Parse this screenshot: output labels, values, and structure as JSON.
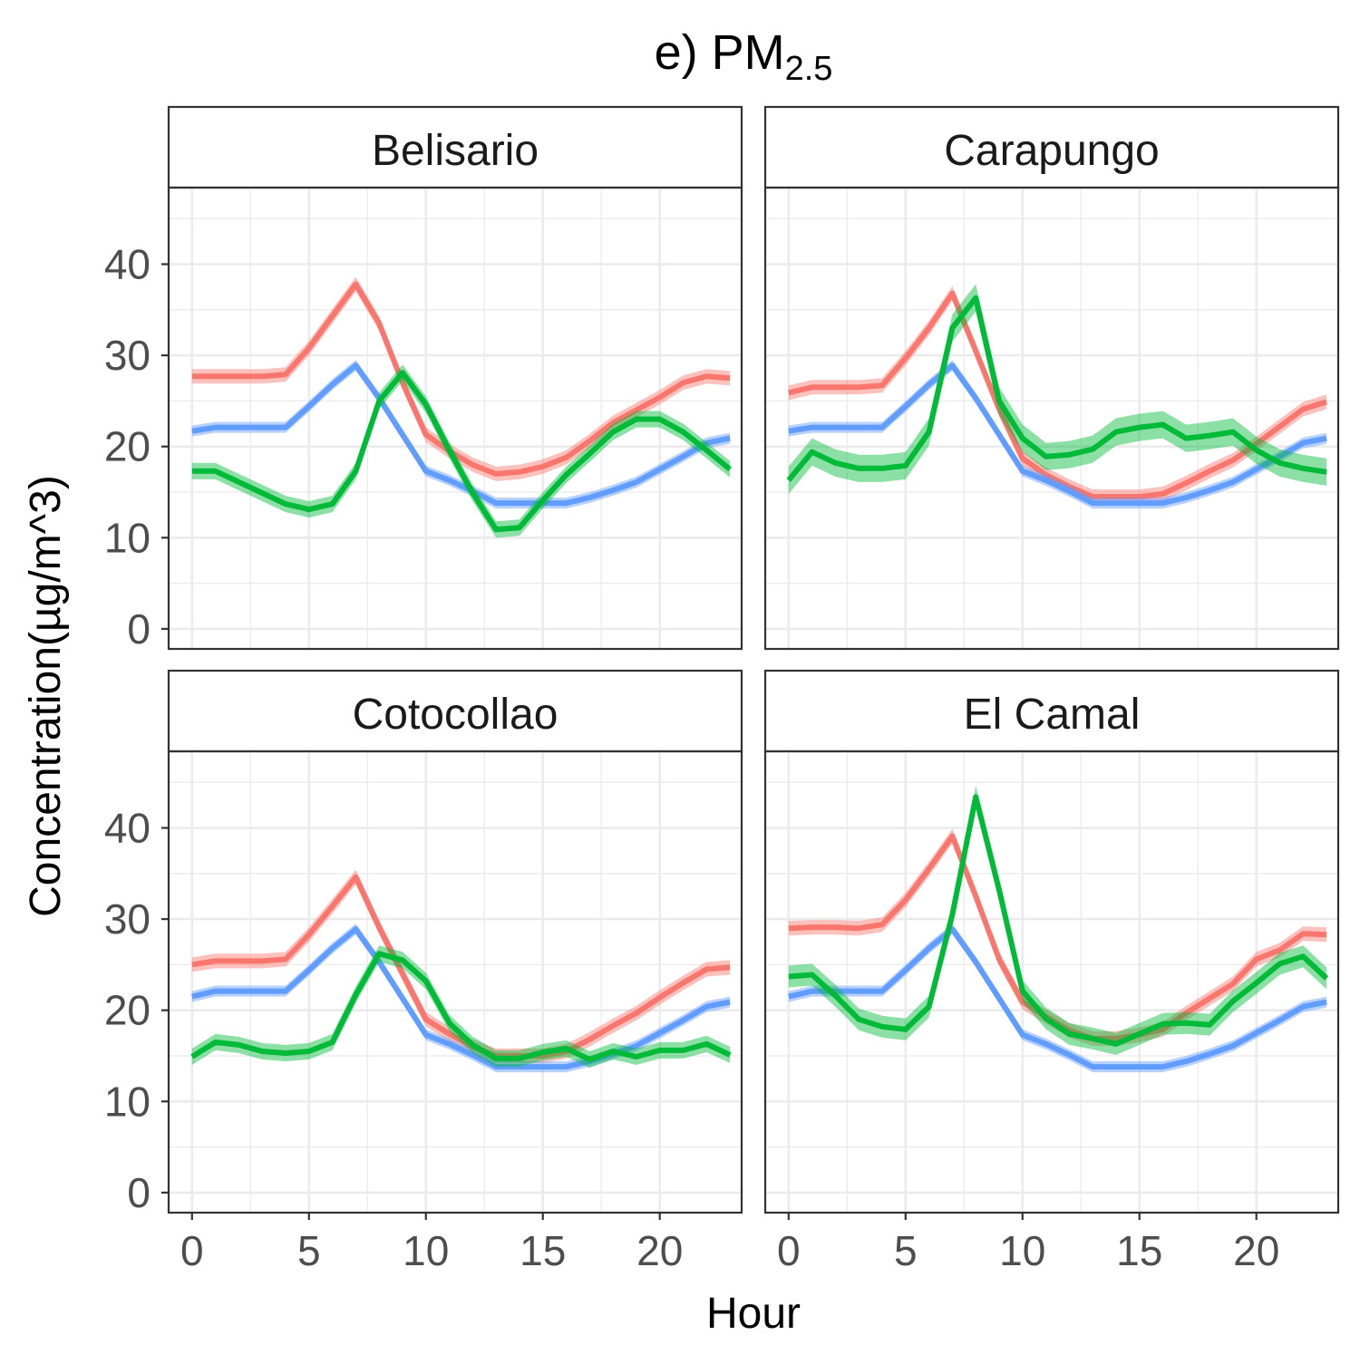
{
  "chart_data": {
    "type": "line",
    "title_prefix": "e) PM",
    "title_subscript": "2.5",
    "xlabel": "Hour",
    "ylabel": "Concentration(µg/m^3)",
    "xlim": [
      -1,
      23.5
    ],
    "ylim": [
      -2.2,
      48.4
    ],
    "x_ticks": [
      0,
      5,
      10,
      15,
      20
    ],
    "y_ticks": [
      0,
      10,
      20,
      30,
      40
    ],
    "grid": true,
    "x": [
      0,
      1,
      2,
      3,
      4,
      5,
      6,
      7,
      8,
      9,
      10,
      11,
      12,
      13,
      14,
      15,
      16,
      17,
      18,
      19,
      20,
      21,
      22,
      23
    ],
    "series_colors": [
      "#F8766D",
      "#619CFF",
      "#00BA38"
    ],
    "panels": [
      {
        "title": "Belisario",
        "series": [
          {
            "color": "#F8766D",
            "band": 0.8,
            "values": [
              27.7,
              27.7,
              27.7,
              27.7,
              27.9,
              30.8,
              34.3,
              37.8,
              33.5,
              27.0,
              21.3,
              19.5,
              18.0,
              17.0,
              17.2,
              17.8,
              18.8,
              20.6,
              22.6,
              24.0,
              25.4,
              27.0,
              27.7,
              27.5
            ]
          },
          {
            "color": "#619CFF",
            "band": 0.6,
            "values": [
              21.7,
              22.1,
              22.1,
              22.1,
              22.1,
              24.4,
              26.8,
              28.9,
              25.3,
              21.3,
              17.3,
              16.3,
              15.1,
              13.8,
              13.8,
              13.8,
              13.8,
              14.4,
              15.2,
              16.1,
              17.5,
              18.9,
              20.4,
              20.9
            ]
          },
          {
            "color": "#00BA38",
            "band": 0.9,
            "values": [
              17.3,
              17.3,
              16.1,
              14.9,
              13.7,
              13.1,
              13.7,
              17.3,
              25.0,
              28.1,
              24.6,
              19.6,
              14.9,
              10.9,
              11.1,
              14.1,
              16.9,
              19.2,
              21.6,
              23.0,
              23.0,
              21.6,
              19.6,
              17.5
            ]
          }
        ]
      },
      {
        "title": "Carapungo",
        "series": [
          {
            "color": "#F8766D",
            "band": 0.8,
            "values": [
              25.9,
              26.5,
              26.5,
              26.5,
              26.7,
              29.7,
              33.0,
              36.8,
              30.5,
              24.1,
              18.7,
              16.9,
              15.6,
              14.5,
              14.5,
              14.5,
              14.8,
              16.0,
              17.3,
              18.5,
              20.3,
              22.2,
              24.1,
              24.9
            ]
          },
          {
            "color": "#619CFF",
            "band": 0.6,
            "values": [
              21.7,
              22.1,
              22.1,
              22.1,
              22.1,
              24.4,
              26.8,
              28.9,
              25.3,
              21.3,
              17.3,
              16.3,
              15.1,
              13.8,
              13.8,
              13.8,
              13.8,
              14.4,
              15.2,
              16.1,
              17.5,
              18.9,
              20.4,
              20.9
            ]
          },
          {
            "color": "#00BA38",
            "band": 1.5,
            "values": [
              16.3,
              19.4,
              18.2,
              17.6,
              17.6,
              17.9,
              21.6,
              33.0,
              36.3,
              25.0,
              20.9,
              18.9,
              19.1,
              19.7,
              21.6,
              22.1,
              22.4,
              20.9,
              21.2,
              21.6,
              19.6,
              18.2,
              17.6,
              17.2
            ]
          }
        ]
      },
      {
        "title": "Cotocollao",
        "series": [
          {
            "color": "#F8766D",
            "band": 0.8,
            "values": [
              25.0,
              25.4,
              25.4,
              25.4,
              25.6,
              28.3,
              31.4,
              34.6,
              29.1,
              24.0,
              19.0,
              17.4,
              16.0,
              15.0,
              15.0,
              15.0,
              15.5,
              16.8,
              18.3,
              19.7,
              21.4,
              23.0,
              24.5,
              24.7
            ]
          },
          {
            "color": "#619CFF",
            "band": 0.6,
            "values": [
              21.5,
              22.1,
              22.1,
              22.1,
              22.1,
              24.4,
              26.8,
              28.9,
              25.3,
              21.3,
              17.3,
              16.3,
              15.1,
              13.8,
              13.8,
              13.8,
              13.8,
              14.4,
              15.2,
              16.1,
              17.5,
              18.9,
              20.4,
              20.9
            ]
          },
          {
            "color": "#00BA38",
            "band": 0.9,
            "values": [
              14.9,
              16.5,
              16.2,
              15.5,
              15.3,
              15.5,
              16.5,
              21.7,
              26.2,
              25.5,
              23.2,
              18.6,
              16.2,
              14.7,
              14.7,
              15.4,
              15.8,
              14.6,
              15.5,
              14.9,
              15.6,
              15.6,
              16.3,
              15.1
            ]
          }
        ]
      },
      {
        "title": "El Camal",
        "series": [
          {
            "color": "#F8766D",
            "band": 0.8,
            "values": [
              29.0,
              29.1,
              29.1,
              29.0,
              29.4,
              32.1,
              35.5,
              39.1,
              32.5,
              25.6,
              20.9,
              19.3,
              17.8,
              16.9,
              16.9,
              17.3,
              17.9,
              19.7,
              21.3,
              22.9,
              25.6,
              26.6,
              28.4,
              28.3
            ]
          },
          {
            "color": "#619CFF",
            "band": 0.6,
            "values": [
              21.5,
              22.1,
              22.1,
              22.1,
              22.1,
              24.4,
              26.8,
              28.9,
              25.3,
              21.3,
              17.3,
              16.3,
              15.1,
              13.8,
              13.8,
              13.8,
              13.8,
              14.4,
              15.2,
              16.1,
              17.5,
              18.9,
              20.4,
              20.9
            ]
          },
          {
            "color": "#00BA38",
            "band": 1.2,
            "values": [
              23.7,
              23.9,
              21.6,
              19.0,
              18.2,
              17.9,
              20.4,
              30.5,
              43.4,
              33.2,
              22.1,
              19.1,
              17.4,
              16.9,
              16.3,
              17.4,
              18.5,
              18.6,
              18.4,
              21.0,
              23.0,
              25.1,
              25.9,
              23.5
            ]
          }
        ]
      }
    ]
  }
}
